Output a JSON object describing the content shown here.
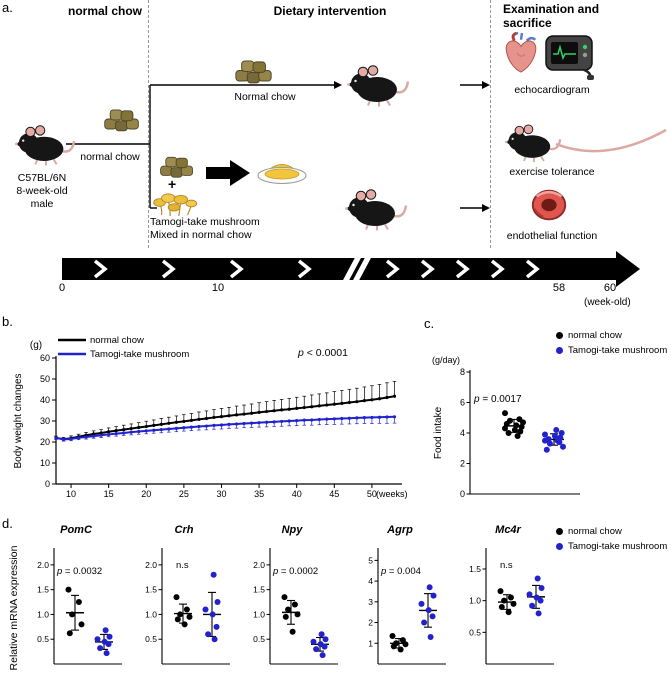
{
  "panels": {
    "a": "a.",
    "b": "b.",
    "c": "c.",
    "d": "d."
  },
  "colors": {
    "black": "#000000",
    "blue": "#2222cc"
  },
  "panel_a": {
    "header_left": "normal chow",
    "header_middle": "Dietary intervention",
    "header_right_line1": "Examination and",
    "header_right_line2": "sacrifice",
    "subject": [
      "C57BL/6N",
      "8-week-old",
      "male"
    ],
    "arrow_label": "normal chow",
    "top_branch_label": "Normal chow",
    "plus": "+",
    "mix_line1": "Tamogi-take mushroom",
    "mix_line2": "Mixed in normal chow",
    "exam_labels": [
      "echocardiogram",
      "exercise tolerance",
      "endothelial function"
    ],
    "timeline": {
      "ticks": [
        "0",
        "10",
        "58",
        "60"
      ],
      "unit": "(week-old)"
    }
  },
  "chart_data": [
    {
      "id": "body_weight",
      "type": "line",
      "ylabel": "Body weight changes",
      "y_unit": "(g)",
      "xlabel": "(weeks)",
      "ylim": [
        0,
        60
      ],
      "yticks": [
        0,
        10,
        20,
        30,
        40,
        50,
        60
      ],
      "xlim": [
        8,
        54
      ],
      "xticks": [
        10,
        15,
        20,
        25,
        30,
        35,
        40,
        45,
        50
      ],
      "p_label": "p < 0.0001",
      "x": [
        8,
        9,
        10,
        11,
        12,
        13,
        14,
        15,
        16,
        17,
        18,
        19,
        20,
        21,
        22,
        23,
        24,
        25,
        26,
        27,
        28,
        29,
        30,
        31,
        32,
        33,
        34,
        35,
        36,
        37,
        38,
        39,
        40,
        41,
        42,
        43,
        44,
        45,
        46,
        47,
        48,
        49,
        50,
        51,
        52,
        53
      ],
      "series": [
        {
          "name": "normal chow",
          "color": "#000000",
          "error_dir": "up",
          "values": [
            22.0,
            21.3,
            21.8,
            22.5,
            23.2,
            23.8,
            24.3,
            24.9,
            25.4,
            25.9,
            26.4,
            26.9,
            27.4,
            27.9,
            28.4,
            28.9,
            29.4,
            29.8,
            30.3,
            30.8,
            31.2,
            31.7,
            32.1,
            32.5,
            32.9,
            33.3,
            33.7,
            34.1,
            34.5,
            34.9,
            35.3,
            35.6,
            36.0,
            36.4,
            36.8,
            37.2,
            37.6,
            38.0,
            38.4,
            38.8,
            39.2,
            39.7,
            40.1,
            40.6,
            41.2,
            41.8
          ],
          "sd": [
            0.8,
            0.9,
            1.1,
            1.2,
            1.4,
            1.5,
            1.6,
            1.8,
            1.9,
            2.1,
            2.2,
            2.3,
            2.5,
            2.6,
            2.8,
            2.9,
            3.0,
            3.2,
            3.3,
            3.5,
            3.6,
            3.7,
            3.9,
            4.0,
            4.2,
            4.3,
            4.4,
            4.6,
            4.7,
            4.9,
            5.0,
            5.1,
            5.3,
            5.4,
            5.6,
            5.7,
            5.8,
            6.0,
            6.1,
            6.3,
            6.4,
            6.5,
            6.7,
            6.8,
            7.0,
            7.1
          ]
        },
        {
          "name": "Tamogi-take mushroom",
          "color": "#2222cc",
          "error_dir": "down",
          "values": [
            22.0,
            21.2,
            21.5,
            22.0,
            22.4,
            22.8,
            23.2,
            23.6,
            24.0,
            24.3,
            24.7,
            25.0,
            25.3,
            25.6,
            25.9,
            26.2,
            26.5,
            26.8,
            27.1,
            27.4,
            27.6,
            27.9,
            28.1,
            28.4,
            28.6,
            28.8,
            29.0,
            29.2,
            29.4,
            29.6,
            29.8,
            30.0,
            30.2,
            30.4,
            30.5,
            30.7,
            30.9,
            31.0,
            31.2,
            31.3,
            31.5,
            31.6,
            31.7,
            31.8,
            31.9,
            32.0
          ],
          "sd": [
            0.8,
            0.8,
            0.9,
            0.9,
            1.0,
            1.0,
            1.1,
            1.1,
            1.2,
            1.2,
            1.3,
            1.3,
            1.4,
            1.4,
            1.5,
            1.5,
            1.6,
            1.6,
            1.7,
            1.7,
            1.8,
            1.8,
            1.9,
            1.9,
            2.0,
            2.0,
            2.1,
            2.1,
            2.2,
            2.2,
            2.3,
            2.3,
            2.4,
            2.4,
            2.5,
            2.5,
            2.6,
            2.6,
            2.7,
            2.7,
            2.8,
            2.8,
            2.9,
            2.9,
            3.0,
            3.0
          ]
        }
      ]
    },
    {
      "id": "food_intake",
      "type": "scatter",
      "ylabel": "Food intake",
      "y_unit": "(g/day)",
      "ylim": [
        0,
        8
      ],
      "yticks": [
        "0",
        "2",
        "4",
        "6",
        "8"
      ],
      "p_label": "p = 0.0017",
      "groups": [
        {
          "name": "normal chow",
          "color": "#000000",
          "values": [
            5.3,
            4.9,
            4.8,
            4.7,
            4.6,
            4.5,
            4.4,
            4.3,
            4.2,
            4.1,
            4.0,
            3.8
          ]
        },
        {
          "name": "Tamogi-take mushroom",
          "color": "#2222cc",
          "values": [
            4.2,
            4.0,
            3.9,
            3.8,
            3.7,
            3.6,
            3.5,
            3.5,
            3.4,
            3.3,
            3.1,
            2.9
          ]
        }
      ]
    },
    {
      "id": "pomc",
      "type": "scatter",
      "title": "PomC",
      "p_label": "p = 0.0032",
      "ylim": [
        0,
        2.3
      ],
      "yticks": [
        "0.5",
        "1.0",
        "1.5",
        "2.0"
      ],
      "groups": [
        {
          "name": "normal chow",
          "color": "#000000",
          "values": [
            1.5,
            1.25,
            1.0,
            0.8,
            0.62
          ]
        },
        {
          "name": "Tamogi-take mushroom",
          "color": "#2222cc",
          "values": [
            0.68,
            0.55,
            0.5,
            0.45,
            0.4,
            0.32,
            0.22
          ]
        }
      ]
    },
    {
      "id": "crh",
      "type": "scatter",
      "title": "Crh",
      "p_label": "n.s",
      "ylim": [
        0,
        2.3
      ],
      "yticks": [
        "0.5",
        "1.0",
        "1.5",
        "2.0"
      ],
      "groups": [
        {
          "name": "normal chow",
          "color": "#000000",
          "values": [
            1.35,
            1.1,
            1.0,
            0.95,
            0.9,
            0.8
          ]
        },
        {
          "name": "Tamogi-take mushroom",
          "color": "#2222cc",
          "values": [
            1.8,
            1.25,
            1.1,
            1.0,
            0.75,
            0.6,
            0.5
          ]
        }
      ]
    },
    {
      "id": "npy",
      "type": "scatter",
      "title": "Npy",
      "p_label": "p = 0.0002",
      "ylim": [
        0,
        2.3
      ],
      "yticks": [
        "0.5",
        "1.0",
        "1.5",
        "2.0"
      ],
      "groups": [
        {
          "name": "normal chow",
          "color": "#000000",
          "values": [
            1.35,
            1.2,
            1.1,
            1.0,
            0.95,
            0.65
          ]
        },
        {
          "name": "Tamogi-take mushroom",
          "color": "#2222cc",
          "values": [
            0.6,
            0.5,
            0.45,
            0.4,
            0.35,
            0.3,
            0.18
          ]
        }
      ]
    },
    {
      "id": "agrp",
      "type": "scatter",
      "title": "Agrp",
      "p_label": "p = 0.004",
      "ylim": [
        0,
        5.5
      ],
      "yticks": [
        "1",
        "2",
        "3",
        "4",
        "5"
      ],
      "groups": [
        {
          "name": "normal chow",
          "color": "#000000",
          "values": [
            1.35,
            1.15,
            1.0,
            0.95,
            0.85,
            0.7
          ]
        },
        {
          "name": "Tamogi-take mushroom",
          "color": "#2222cc",
          "values": [
            3.7,
            3.3,
            2.9,
            2.6,
            2.3,
            2.0,
            1.3
          ]
        }
      ]
    },
    {
      "id": "mc4r",
      "type": "scatter",
      "title": "Mc4r",
      "p_label": "n.s",
      "ylim": [
        0,
        1.8
      ],
      "yticks": [
        "0.5",
        "1.0",
        "1.5"
      ],
      "groups": [
        {
          "name": "normal chow",
          "color": "#000000",
          "values": [
            1.15,
            1.05,
            1.0,
            0.95,
            0.9,
            0.82
          ]
        },
        {
          "name": "Tamogi-take mushroom",
          "color": "#2222cc",
          "values": [
            1.35,
            1.2,
            1.1,
            1.05,
            1.0,
            0.92,
            0.8
          ]
        }
      ]
    }
  ],
  "d_ylabel": "Relative mRNA expression"
}
